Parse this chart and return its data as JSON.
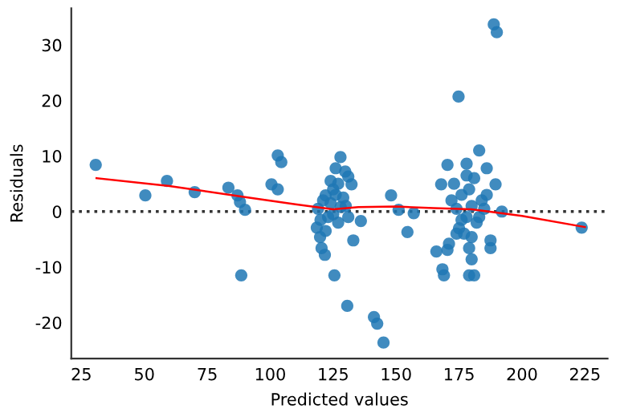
{
  "chart_data": {
    "type": "scatter",
    "xlabel": "Predicted values",
    "ylabel": "Residuals",
    "xlim": [
      21,
      234
    ],
    "ylim": [
      -26.5,
      36.6
    ],
    "xticks": [
      25,
      50,
      75,
      100,
      125,
      150,
      175,
      200,
      225
    ],
    "yticks": [
      -20,
      -10,
      0,
      10,
      20,
      30
    ],
    "grid": false,
    "legend": false,
    "ref_lines": [
      {
        "axis": "y",
        "value": 0,
        "label": null,
        "color": "#333333",
        "line_style": "dotted"
      }
    ],
    "series": [
      {
        "marker": "circle",
        "color": "#1f77b4",
        "x": [
          30.7,
          50.4,
          59,
          70,
          83.4,
          87,
          88,
          90,
          88.5,
          100.5,
          103,
          103,
          104.4,
          118.5,
          119.8,
          120.4,
          121.7,
          125.5,
          130.6,
          133,
          127.9,
          126,
          129.8,
          131,
          124,
          122,
          125,
          132.3,
          119,
          121,
          123,
          124,
          126,
          127,
          128,
          129,
          122,
          125,
          130,
          131,
          127,
          120,
          141.2,
          142.5,
          145,
          136,
          148,
          154.5,
          151,
          157,
          188.8,
          190,
          174.8,
          183,
          178,
          170.4,
          186,
          167.9,
          189.5,
          192,
          166,
          168.4,
          169,
          179,
          180,
          187.5,
          187.5,
          179,
          171,
          170.4,
          180,
          181,
          172,
          174,
          176,
          178,
          180,
          182,
          184,
          175,
          177,
          179,
          181,
          183,
          185,
          173,
          176,
          178,
          186,
          174,
          223.7
        ],
        "values": [
          8.4,
          2.9,
          5.5,
          3.5,
          4.3,
          2.9,
          1.7,
          0.3,
          -11.5,
          4.9,
          4,
          10.1,
          8.9,
          -2.9,
          -4.6,
          -6.6,
          -7.8,
          -11.5,
          -17,
          -5.2,
          9.8,
          7.8,
          7.2,
          6.3,
          5.5,
          2.9,
          4,
          4.9,
          0.5,
          2,
          -1,
          1.5,
          3,
          -2,
          0.8,
          2.5,
          -3.5,
          -0.5,
          1,
          -1,
          5,
          -1.5,
          -19,
          -20.2,
          -23.6,
          -1.7,
          2.9,
          -3.7,
          0.3,
          -0.3,
          33.7,
          32.3,
          20.7,
          11,
          8.6,
          8.4,
          7.8,
          4.9,
          4.9,
          0,
          -7.2,
          -10.4,
          -11.5,
          -11.5,
          -4.6,
          -5.2,
          -6.6,
          -6.6,
          -5.8,
          -6.9,
          -8.6,
          -11.5,
          2,
          0.5,
          3,
          -1,
          1,
          -2,
          2,
          -3,
          -4,
          4,
          6,
          -1,
          0.5,
          5,
          -1.5,
          6.5,
          3,
          -4,
          -2.9
        ]
      },
      {
        "type": "line",
        "color": "#ff0000",
        "x": [
          31,
          60,
          90,
          110,
          125,
          135,
          150,
          165,
          180,
          200,
          225
        ],
        "values": [
          6,
          4.6,
          2.6,
          1.3,
          0.4,
          0.8,
          0.9,
          0.6,
          0.4,
          -0.8,
          -2.8
        ]
      }
    ]
  }
}
